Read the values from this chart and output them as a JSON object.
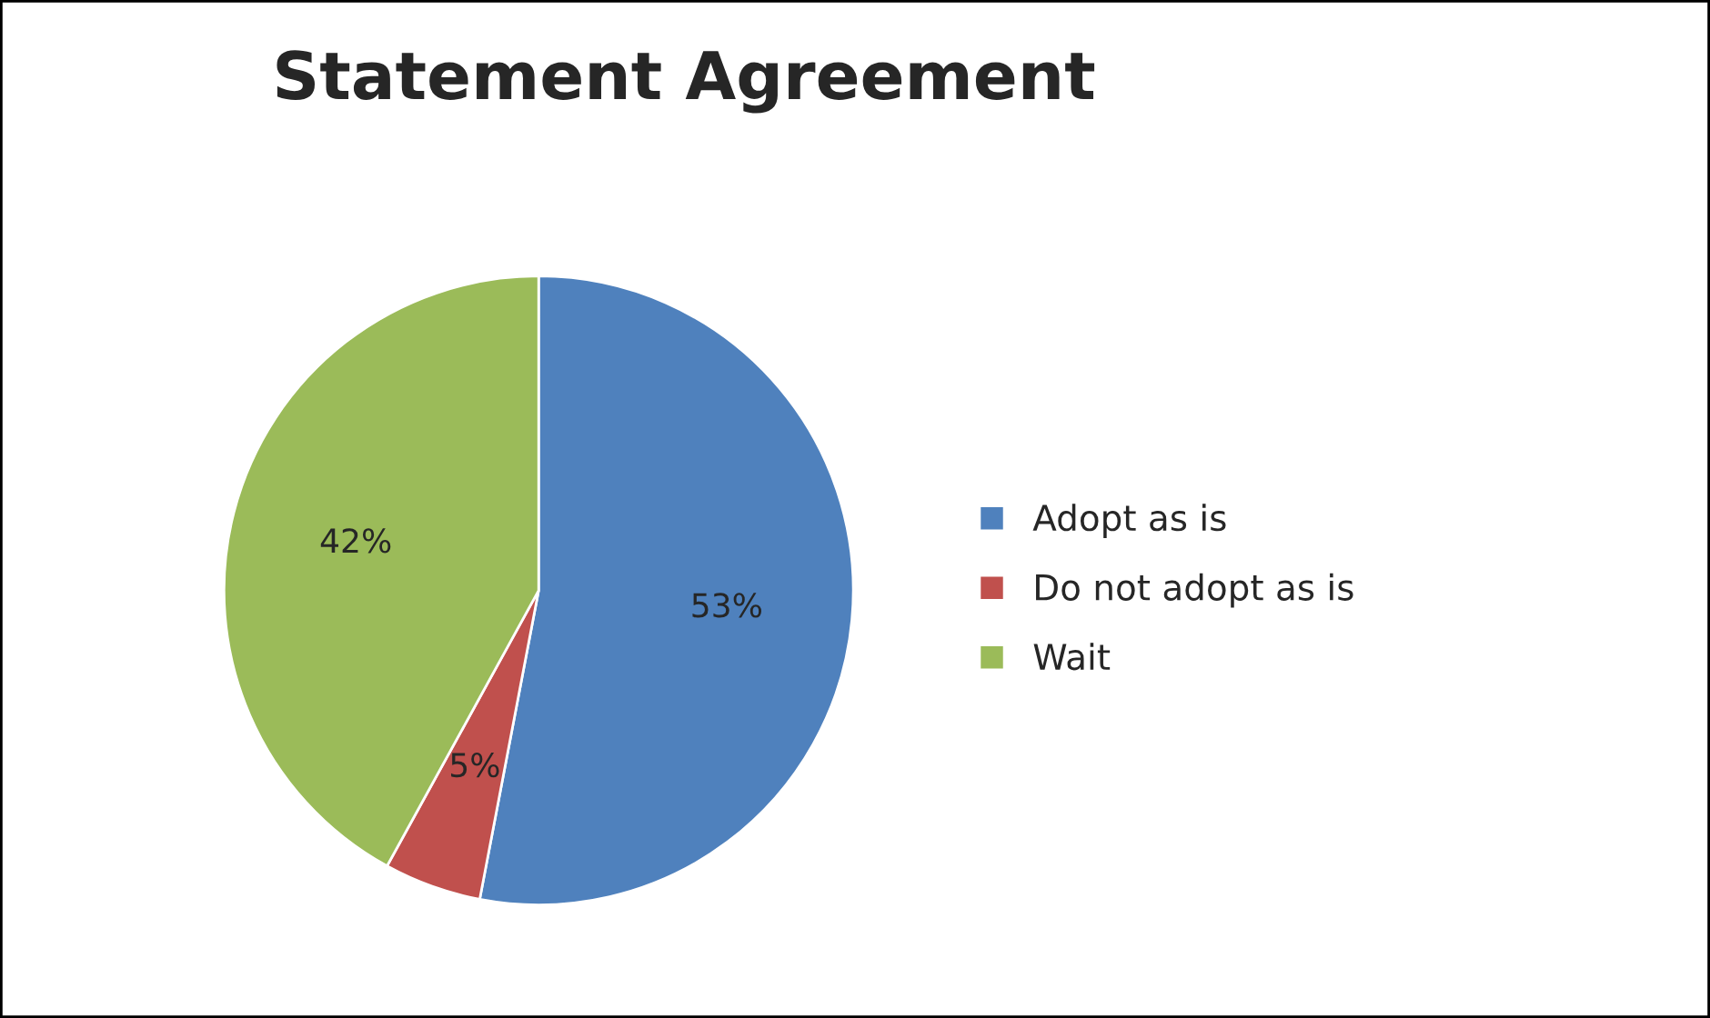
{
  "chart_data": {
    "type": "pie",
    "title": "Statement Agreement",
    "categories": [
      "Adopt as is",
      "Do not adopt as is",
      "Wait"
    ],
    "values": [
      53,
      5,
      42
    ],
    "colors": [
      "#4f81bd",
      "#c0504d",
      "#9bbb59"
    ],
    "value_labels": [
      "53%",
      "5%",
      "42%"
    ],
    "legend": "right"
  }
}
